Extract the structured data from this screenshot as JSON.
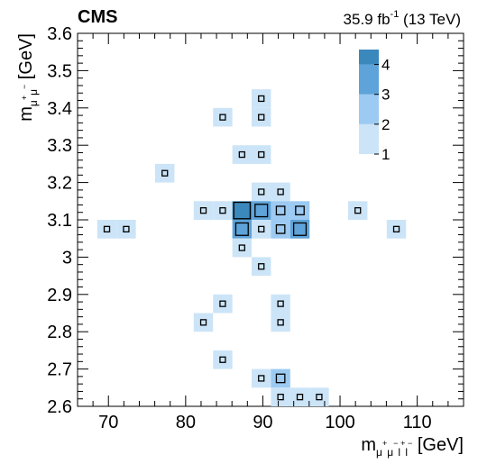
{
  "experiment": "CMS",
  "lumi": {
    "prefix": "35.9 fb",
    "sup": "-1",
    "suffix": " (13 TeV)"
  },
  "x_axis": {
    "main": "m",
    "sub": "μ",
    "sup1": "+",
    "sub2": "μ",
    "sup2": "−",
    "sub3": "l",
    "sup3": "+",
    "sub4": "l",
    "sup4": "−",
    "unit": " [GeV]"
  },
  "y_axis": {
    "main": "m",
    "sub": "μ",
    "sup1": "+",
    "sub2": "μ",
    "sup2": "−",
    "unit": " [GeV]"
  },
  "colors": {
    "level1": "#cce4f7",
    "level2": "#9ccaf2",
    "level3": "#5ea3d9",
    "level4": "#3b88bd"
  },
  "chart_data": {
    "type": "heatmap",
    "xlim": [
      66,
      116
    ],
    "ylim": [
      2.6,
      3.6
    ],
    "bin_width_x": 2.5,
    "bin_width_y": 0.05,
    "x_ticks": [
      "70",
      "80",
      "90",
      "100",
      "110"
    ],
    "x_tick_values": [
      70,
      80,
      90,
      100,
      110
    ],
    "y_ticks": [
      "2.6",
      "2.7",
      "2.8",
      "2.9",
      "3",
      "3.1",
      "3.2",
      "3.3",
      "3.4",
      "3.5",
      "3.6"
    ],
    "y_tick_values": [
      2.6,
      2.7,
      2.8,
      2.9,
      3.0,
      3.1,
      3.2,
      3.3,
      3.4,
      3.5,
      3.6
    ],
    "z_range": [
      1,
      4.5
    ],
    "z_ticks": [
      "1",
      "2",
      "3",
      "4"
    ],
    "z_tick_values": [
      1,
      2,
      3,
      4
    ],
    "cells": [
      {
        "x": 89.8,
        "y": 3.425,
        "z": 1
      },
      {
        "x": 84.8,
        "y": 3.375,
        "z": 1
      },
      {
        "x": 89.8,
        "y": 3.375,
        "z": 1
      },
      {
        "x": 87.3,
        "y": 3.275,
        "z": 1
      },
      {
        "x": 89.8,
        "y": 3.275,
        "z": 1
      },
      {
        "x": 77.3,
        "y": 3.225,
        "z": 1
      },
      {
        "x": 89.8,
        "y": 3.175,
        "z": 1
      },
      {
        "x": 92.3,
        "y": 3.175,
        "z": 1
      },
      {
        "x": 82.3,
        "y": 3.125,
        "z": 1
      },
      {
        "x": 84.8,
        "y": 3.125,
        "z": 1
      },
      {
        "x": 87.3,
        "y": 3.125,
        "z": 4
      },
      {
        "x": 89.8,
        "y": 3.125,
        "z": 3
      },
      {
        "x": 92.3,
        "y": 3.125,
        "z": 2
      },
      {
        "x": 94.8,
        "y": 3.125,
        "z": 2
      },
      {
        "x": 102.3,
        "y": 3.125,
        "z": 1
      },
      {
        "x": 69.8,
        "y": 3.075,
        "z": 1
      },
      {
        "x": 72.3,
        "y": 3.075,
        "z": 1
      },
      {
        "x": 87.3,
        "y": 3.075,
        "z": 3
      },
      {
        "x": 89.8,
        "y": 3.075,
        "z": 1
      },
      {
        "x": 92.3,
        "y": 3.075,
        "z": 2
      },
      {
        "x": 94.8,
        "y": 3.075,
        "z": 3
      },
      {
        "x": 107.3,
        "y": 3.075,
        "z": 1
      },
      {
        "x": 87.3,
        "y": 3.025,
        "z": 1
      },
      {
        "x": 89.8,
        "y": 2.975,
        "z": 1
      },
      {
        "x": 84.8,
        "y": 2.875,
        "z": 1
      },
      {
        "x": 92.3,
        "y": 2.875,
        "z": 1
      },
      {
        "x": 82.3,
        "y": 2.825,
        "z": 1
      },
      {
        "x": 92.3,
        "y": 2.825,
        "z": 1
      },
      {
        "x": 84.8,
        "y": 2.725,
        "z": 1
      },
      {
        "x": 89.8,
        "y": 2.675,
        "z": 1
      },
      {
        "x": 92.3,
        "y": 2.675,
        "z": 2
      },
      {
        "x": 92.3,
        "y": 2.625,
        "z": 1
      },
      {
        "x": 94.8,
        "y": 2.625,
        "z": 1
      },
      {
        "x": 97.3,
        "y": 2.625,
        "z": 1
      }
    ]
  }
}
